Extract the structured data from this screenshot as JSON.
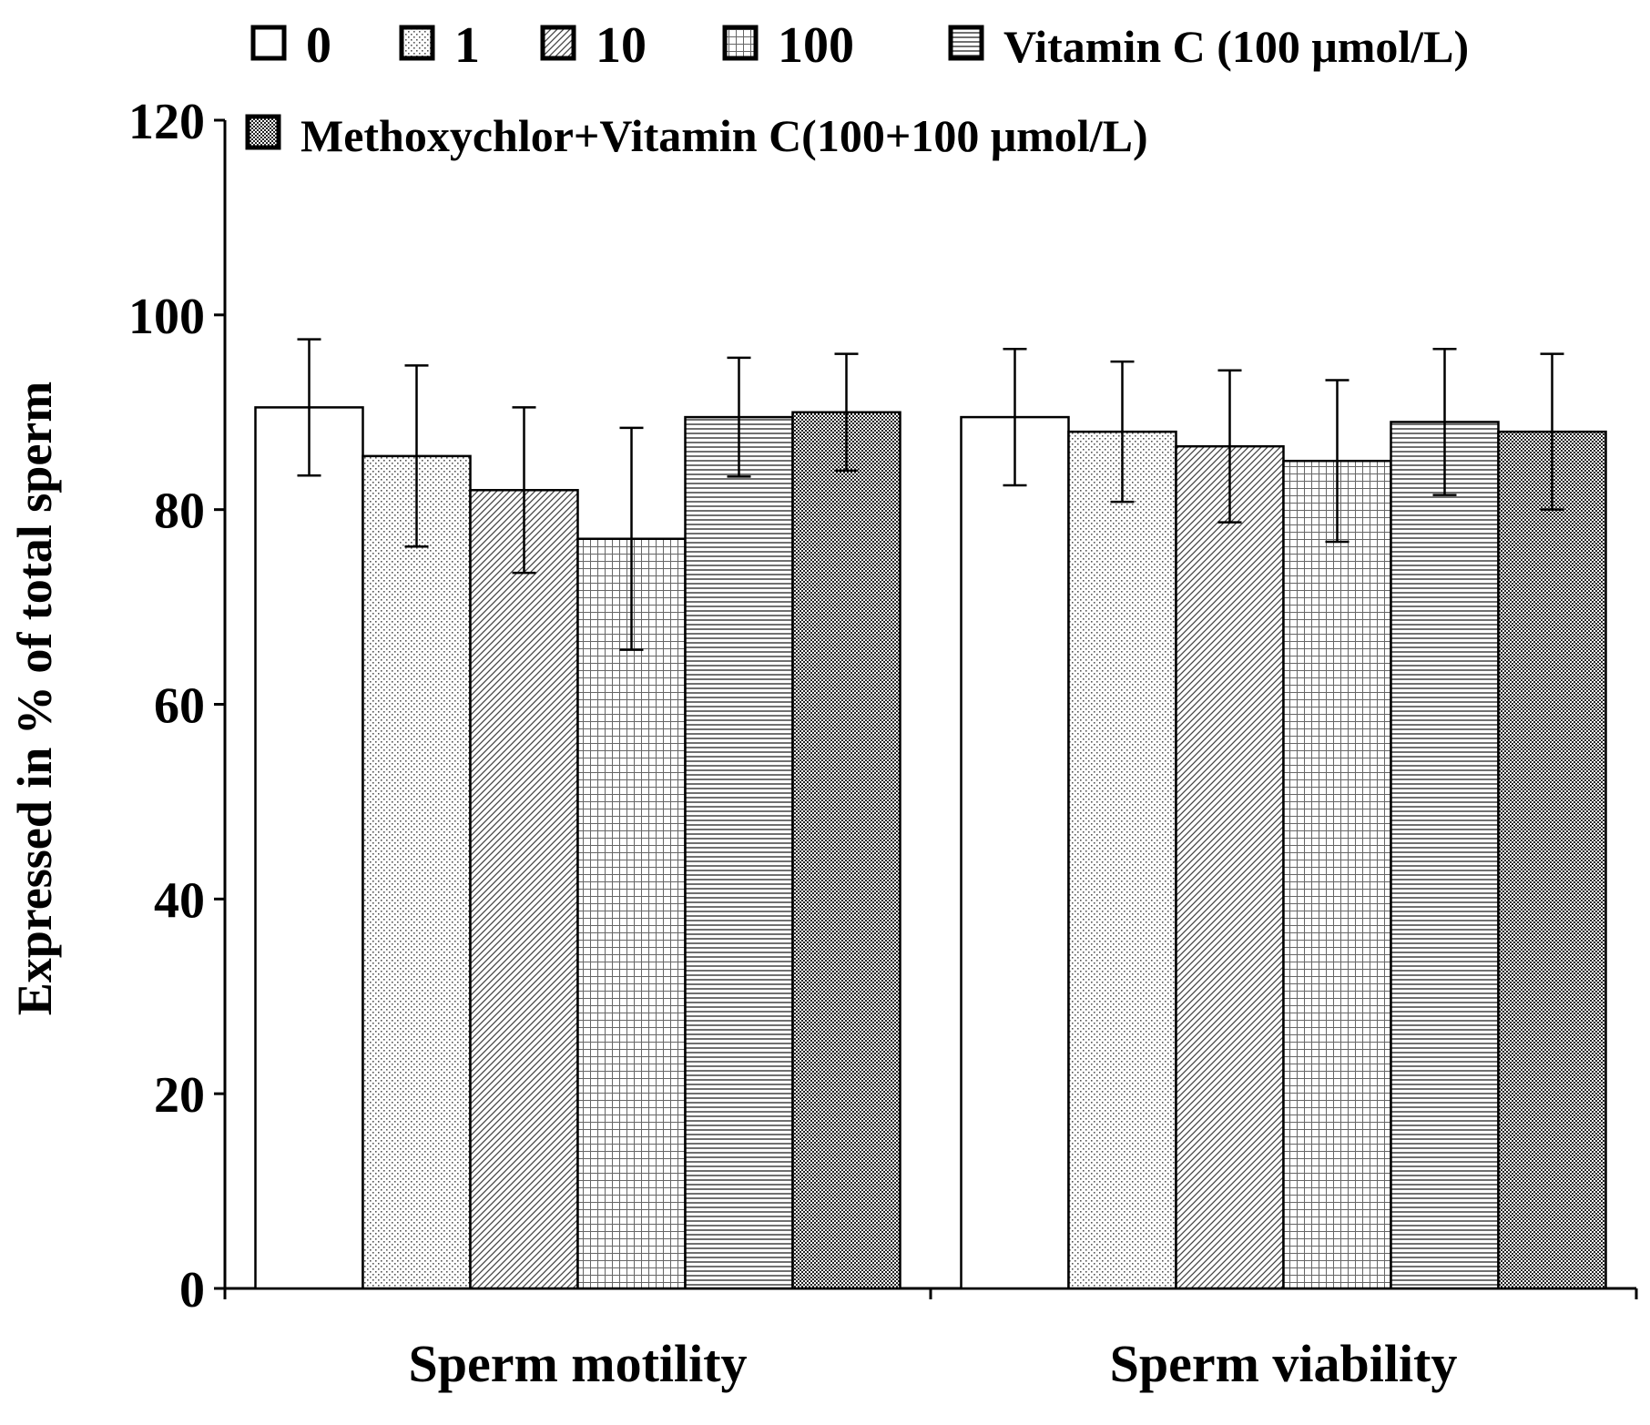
{
  "chart_data": {
    "type": "bar",
    "title": "",
    "xlabel": "",
    "ylabel": "Expressed in % of total sperm",
    "ylim": [
      0,
      120
    ],
    "yticks": [
      0,
      20,
      40,
      60,
      80,
      100,
      120
    ],
    "categories": [
      "Sperm motility",
      "Sperm viability"
    ],
    "grid": false,
    "legend_position": "top",
    "series": [
      {
        "name": "0",
        "pattern": "white",
        "values": [
          90.5,
          89.5
        ],
        "errors": [
          7.0,
          7.0
        ]
      },
      {
        "name": "1",
        "pattern": "dots",
        "values": [
          85.5,
          88.0
        ],
        "errors": [
          9.3,
          7.2
        ]
      },
      {
        "name": "10",
        "pattern": "diagonal",
        "values": [
          82.0,
          86.5
        ],
        "errors": [
          8.5,
          7.8
        ]
      },
      {
        "name": "100",
        "pattern": "grid",
        "values": [
          77.0,
          85.0
        ],
        "errors": [
          11.4,
          8.3
        ]
      },
      {
        "name": "Vitamin C (100 μmol/L)",
        "pattern": "horizontal",
        "values": [
          89.5,
          89.0
        ],
        "errors": [
          6.1,
          7.5
        ]
      },
      {
        "name": "Methoxychlor+Vitamin C(100+100 μmol/L)",
        "pattern": "checker",
        "values": [
          90.0,
          88.0
        ],
        "errors": [
          6.0,
          8.0
        ]
      }
    ]
  }
}
